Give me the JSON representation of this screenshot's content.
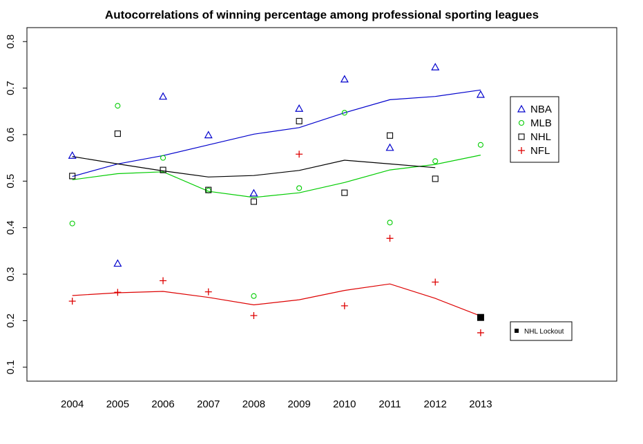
{
  "chart_data": {
    "type": "scatter",
    "title": "Autocorrelations of winning percentage among professional sporting leagues",
    "xlabel": "",
    "ylabel": "",
    "x": [
      2004,
      2005,
      2006,
      2007,
      2008,
      2009,
      2010,
      2011,
      2012,
      2013
    ],
    "xlim": [
      2003.0,
      2016.0
    ],
    "ylim": [
      0.07,
      0.83
    ],
    "yticks": [
      0.1,
      0.2,
      0.3,
      0.4,
      0.5,
      0.6,
      0.7,
      0.8
    ],
    "ytick_labels": [
      "0.1",
      "0.2",
      "0.3",
      "0.4",
      "0.5",
      "0.6",
      "0.7",
      "0.8"
    ],
    "xtick_labels": [
      "2004",
      "2005",
      "2006",
      "2007",
      "2008",
      "2009",
      "2010",
      "2011",
      "2012",
      "2013"
    ],
    "series": [
      {
        "name": "NBA",
        "color": "#0000cc",
        "marker": "triangle",
        "points": [
          0.555,
          0.323,
          0.682,
          0.599,
          0.474,
          0.656,
          0.719,
          0.572,
          0.745,
          0.686
        ],
        "trend_x": [
          2004,
          2005,
          2006,
          2007,
          2008,
          2009,
          2010,
          2011,
          2012,
          2013
        ],
        "trend": [
          0.51,
          0.537,
          0.555,
          0.578,
          0.601,
          0.615,
          0.647,
          0.675,
          0.682,
          0.696
        ]
      },
      {
        "name": "MLB",
        "color": "#00cc00",
        "marker": "circle",
        "points": [
          0.409,
          0.662,
          0.55,
          0.48,
          0.253,
          0.485,
          0.647,
          0.411,
          0.543,
          0.578
        ],
        "trend_x": [
          2004,
          2005,
          2006,
          2007,
          2008,
          2009,
          2010,
          2011,
          2012,
          2013
        ],
        "trend": [
          0.503,
          0.516,
          0.52,
          0.478,
          0.465,
          0.475,
          0.497,
          0.524,
          0.536,
          0.556
        ]
      },
      {
        "name": "NHL",
        "color": "#000000",
        "marker": "square",
        "points": [
          0.511,
          0.602,
          0.524,
          0.481,
          0.456,
          0.629,
          0.475,
          0.598,
          0.505,
          null
        ],
        "trend_x": [
          2004,
          2005,
          2006,
          2007,
          2008,
          2009,
          2010,
          2011,
          2012
        ],
        "trend": [
          0.553,
          0.537,
          0.522,
          0.509,
          0.512,
          0.523,
          0.545,
          0.537,
          0.529
        ]
      },
      {
        "name": "NFL",
        "color": "#dd0000",
        "marker": "plus",
        "points": [
          0.242,
          0.261,
          0.286,
          0.262,
          0.211,
          0.558,
          0.232,
          0.377,
          0.283,
          0.174
        ],
        "trend_x": [
          2004,
          2005,
          2006,
          2007,
          2008,
          2009,
          2010,
          2011,
          2012,
          2013
        ],
        "trend": [
          0.254,
          0.26,
          0.263,
          0.25,
          0.234,
          0.245,
          0.265,
          0.279,
          0.248,
          0.21
        ]
      }
    ],
    "annotations": [
      {
        "text": "NHL Lockout",
        "x": 2013,
        "y": 0.207,
        "marker": "filled-square",
        "color": "#000000"
      }
    ],
    "legend_position": "right"
  }
}
